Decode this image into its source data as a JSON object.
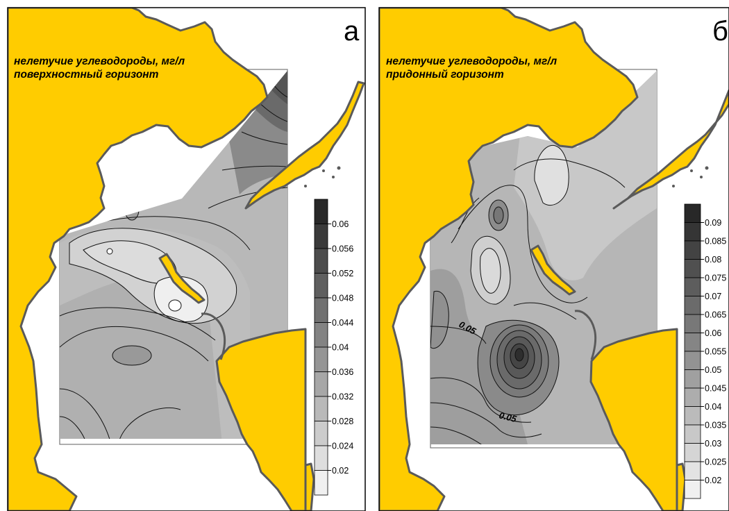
{
  "colors": {
    "land": "#ffcc00",
    "coast": "#5a5a5a",
    "contour": "#111111",
    "frame": "#000000"
  },
  "panel_a": {
    "letter": "а",
    "title_line1": "нелетучие углеводороды, мг/л",
    "title_line2": "поверхностный горизонт",
    "legend": {
      "bands": 12,
      "ticks": [
        "0.06",
        "0.056",
        "0.052",
        "0.048",
        "0.044",
        "0.04",
        "0.036",
        "0.032",
        "0.028",
        "0.024",
        "0.02"
      ]
    }
  },
  "panel_b": {
    "letter": "б",
    "title_line1": "нелетучие углеводороды, мг/л",
    "title_line2": "придонный горизонт",
    "contour_labels": [
      "0.05",
      "0.05"
    ],
    "legend": {
      "bands": 16,
      "ticks": [
        "0.09",
        "0.085",
        "0.08",
        "0.075",
        "0.07",
        "0.065",
        "0.06",
        "0.055",
        "0.05",
        "0.045",
        "0.04",
        "0.035",
        "0.03",
        "0.025",
        "0.02"
      ]
    }
  }
}
